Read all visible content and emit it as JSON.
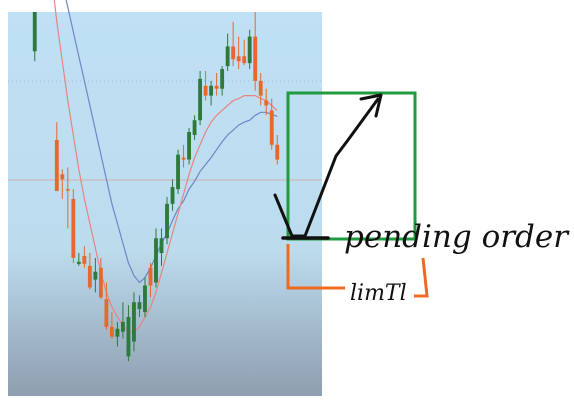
{
  "chart_data": {
    "type": "candlestick",
    "grid": false,
    "series": [
      {
        "type": "candles",
        "candles": [
          {
            "o": 2,
            "h": 2,
            "l": 1.5,
            "c": 1.6,
            "d": "bull"
          },
          {
            "o": 2,
            "h": 2,
            "l": 2,
            "c": 2,
            "d": "bull"
          },
          {
            "o": 2,
            "h": 2,
            "l": 2,
            "c": 2,
            "d": "bull"
          },
          {
            "o": 2,
            "h": 2,
            "l": 2,
            "c": 2,
            "d": "bull"
          },
          {
            "o": 0.7,
            "h": 0.88,
            "l": 0.18,
            "c": 0.18,
            "d": "bear"
          },
          {
            "o": 0.3,
            "h": 0.4,
            "l": 0.1,
            "c": 0.35,
            "d": "bear"
          },
          {
            "o": 0.2,
            "h": 0.42,
            "l": -0.2,
            "c": 0.2,
            "d": "bear"
          },
          {
            "o": 0.1,
            "h": 0.2,
            "l": -0.55,
            "c": -0.5,
            "d": "bear"
          },
          {
            "o": -0.54,
            "h": -0.45,
            "l": -0.58,
            "c": -0.56,
            "d": "bull"
          },
          {
            "o": -0.48,
            "h": -0.38,
            "l": -0.6,
            "c": -0.56,
            "d": "bear"
          },
          {
            "o": -0.58,
            "h": -0.45,
            "l": -0.82,
            "c": -0.8,
            "d": "bear"
          },
          {
            "o": -0.64,
            "h": -0.5,
            "l": -0.85,
            "c": -0.72,
            "d": "bull"
          },
          {
            "o": -0.6,
            "h": -0.5,
            "l": -0.92,
            "c": -0.9,
            "d": "bear"
          },
          {
            "o": -0.92,
            "h": -0.75,
            "l": -1.23,
            "c": -1.2,
            "d": "bear"
          },
          {
            "o": -1.2,
            "h": -1.05,
            "l": -1.32,
            "c": -1.3,
            "d": "bear"
          },
          {
            "o": -1.3,
            "h": -1.15,
            "l": -1.4,
            "c": -1.22,
            "d": "bull"
          },
          {
            "o": -1.25,
            "h": -0.95,
            "l": -1.32,
            "c": -1.15,
            "d": "bull"
          },
          {
            "o": -1.1,
            "h": -0.98,
            "l": -1.55,
            "c": -1.5,
            "d": "bull"
          },
          {
            "o": -1.35,
            "h": -0.85,
            "l": -1.45,
            "c": -0.95,
            "d": "bull"
          },
          {
            "o": -1.02,
            "h": -0.88,
            "l": -1.1,
            "c": -0.95,
            "d": "bull"
          },
          {
            "o": -1.05,
            "h": -0.7,
            "l": -1.1,
            "c": -0.78,
            "d": "bull"
          },
          {
            "o": -0.78,
            "h": -0.55,
            "l": -0.9,
            "c": -0.6,
            "d": "bear"
          },
          {
            "o": -0.75,
            "h": -0.2,
            "l": -0.8,
            "c": -0.3,
            "d": "bull"
          },
          {
            "o": -0.45,
            "h": -0.2,
            "l": -0.58,
            "c": -0.3,
            "d": "bull"
          },
          {
            "o": -0.3,
            "h": 0.12,
            "l": -0.36,
            "c": 0.05,
            "d": "bull"
          },
          {
            "o": 0.05,
            "h": 0.3,
            "l": -0.02,
            "c": 0.22,
            "d": "bull"
          },
          {
            "o": 0.2,
            "h": 0.6,
            "l": 0.15,
            "c": 0.55,
            "d": "bull"
          },
          {
            "o": 0.52,
            "h": 0.65,
            "l": 0.42,
            "c": 0.5,
            "d": "bear"
          },
          {
            "o": 0.5,
            "h": 0.82,
            "l": 0.45,
            "c": 0.78,
            "d": "bull"
          },
          {
            "o": 0.75,
            "h": 0.95,
            "l": 0.7,
            "c": 0.9,
            "d": "bull"
          },
          {
            "o": 0.9,
            "h": 1.4,
            "l": 0.85,
            "c": 1.32,
            "d": "bull"
          },
          {
            "o": 1.25,
            "h": 1.4,
            "l": 1.1,
            "c": 1.15,
            "d": "bear"
          },
          {
            "o": 1.15,
            "h": 1.3,
            "l": 1.05,
            "c": 1.25,
            "d": "bull"
          },
          {
            "o": 1.25,
            "h": 1.38,
            "l": 1.15,
            "c": 1.22,
            "d": "bear"
          },
          {
            "o": 1.22,
            "h": 1.45,
            "l": 1.15,
            "c": 1.42,
            "d": "bull"
          },
          {
            "o": 1.45,
            "h": 1.78,
            "l": 1.4,
            "c": 1.65,
            "d": "bull"
          },
          {
            "o": 1.65,
            "h": 1.9,
            "l": 1.45,
            "c": 1.52,
            "d": "bear"
          },
          {
            "o": 1.5,
            "h": 1.75,
            "l": 1.42,
            "c": 1.55,
            "d": "bear"
          },
          {
            "o": 1.55,
            "h": 1.72,
            "l": 1.46,
            "c": 1.48,
            "d": "bear"
          },
          {
            "o": 1.48,
            "h": 1.82,
            "l": 1.42,
            "c": 1.75,
            "d": "bull"
          },
          {
            "o": 1.75,
            "h": 2,
            "l": 1.2,
            "c": 1.3,
            "d": "bear"
          },
          {
            "o": 1.3,
            "h": 1.38,
            "l": 1.05,
            "c": 1.15,
            "d": "bear"
          },
          {
            "o": 1.1,
            "h": 1.22,
            "l": 0.95,
            "c": 1.05,
            "d": "bear"
          },
          {
            "o": 1.0,
            "h": 1.12,
            "l": 0.6,
            "c": 0.65,
            "d": "bear"
          },
          {
            "o": 0.65,
            "h": 0.75,
            "l": 0.45,
            "c": 0.5,
            "d": "bear"
          }
        ]
      },
      {
        "type": "moving_average",
        "color": "#6f86c6",
        "values": [
          3.5,
          3.3,
          3.1,
          2.8,
          2.55,
          2.3,
          2.05,
          1.8,
          1.55,
          1.3,
          1.05,
          0.8,
          0.55,
          0.3,
          0.05,
          -0.15,
          -0.35,
          -0.55,
          -0.68,
          -0.75,
          -0.7,
          -0.6,
          -0.48,
          -0.35,
          -0.25,
          -0.12,
          0,
          0.08,
          0.2,
          0.28,
          0.38,
          0.45,
          0.52,
          0.6,
          0.68,
          0.75,
          0.8,
          0.85,
          0.88,
          0.9,
          0.95,
          0.98,
          0.98,
          0.96,
          0.94
        ]
      },
      {
        "type": "moving_average",
        "color": "#e7857f",
        "values": [
          3.8,
          3.4,
          2.9,
          2.4,
          1.9,
          1.5,
          1.1,
          0.75,
          0.4,
          0.1,
          -0.15,
          -0.4,
          -0.65,
          -0.85,
          -1.0,
          -1.1,
          -1.18,
          -1.25,
          -1.25,
          -1.2,
          -1.1,
          -1.0,
          -0.85,
          -0.65,
          -0.45,
          -0.25,
          -0.05,
          0.15,
          0.35,
          0.52,
          0.65,
          0.78,
          0.88,
          0.95,
          1.0,
          1.05,
          1.1,
          1.12,
          1.15,
          1.15,
          1.15,
          1.12,
          1.1,
          1.05,
          1.0
        ]
      }
    ],
    "annotations": [
      {
        "kind": "text",
        "text": "pending order",
        "color": "#111111"
      },
      {
        "kind": "text",
        "text": "limTl",
        "color": "#111111"
      }
    ]
  },
  "style": {
    "bull_color": "#2e7a3c",
    "bear_color": "#e8682c",
    "box_color": "#1f9a3e",
    "bracket_color": "#ef6a1f",
    "pen_color": "#111111"
  }
}
